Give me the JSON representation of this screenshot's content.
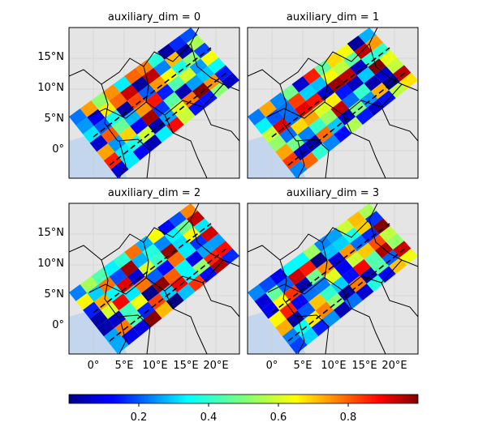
{
  "figure": {
    "panels": [
      {
        "title": "auxiliary_dim = 0",
        "seed": 11
      },
      {
        "title": "auxiliary_dim = 1",
        "seed": 23
      },
      {
        "title": "auxiliary_dim = 2",
        "seed": 37
      },
      {
        "title": "auxiliary_dim = 3",
        "seed": 53
      }
    ],
    "lat_ticks": [
      "15°N",
      "10°N",
      "5°N",
      "0°"
    ],
    "lon_ticks": [
      "0°",
      "5°E",
      "10°E",
      "15°E",
      "20°E"
    ],
    "colorbar": {
      "ticks": [
        "0.2",
        "0.4",
        "0.6",
        "0.8"
      ],
      "tick_values": [
        0.2,
        0.4,
        0.6,
        0.8
      ],
      "range": [
        0.0,
        1.0
      ],
      "colormap": "jet"
    },
    "colors": {
      "land": "#e5e5e5",
      "ocean": "#c3d6ee",
      "border": "#000000",
      "gridline": "#cccccc"
    }
  }
}
